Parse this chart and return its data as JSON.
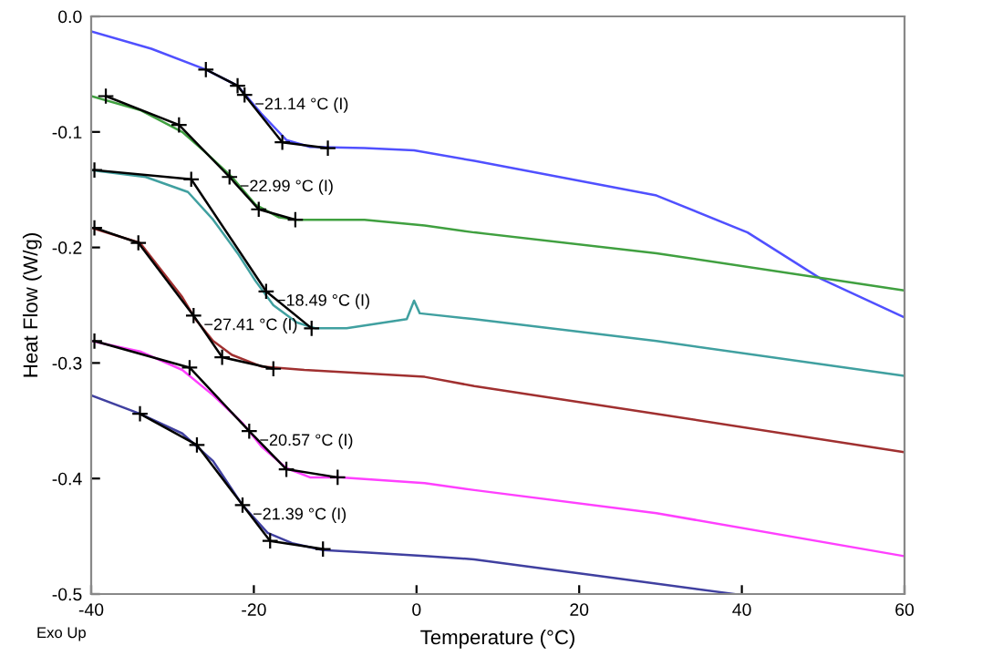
{
  "chart_data": {
    "type": "line",
    "xlabel": "Temperature (°C)",
    "ylabel": "Heat Flow (W/g)",
    "xlim": [
      -40,
      60
    ],
    "xticks": [
      -40,
      -20,
      0,
      20,
      40,
      60
    ],
    "ylim": [
      -0.5,
      0.0
    ],
    "yticks": [
      {
        "value": -0.5,
        "label": "-0.5"
      },
      {
        "value": -0.4,
        "label": "-0.4"
      },
      {
        "value": -0.3,
        "label": "-0.3"
      },
      {
        "value": -0.2,
        "label": "-0.2"
      },
      {
        "value": -0.1,
        "label": "-0.1"
      },
      {
        "value": 0.0,
        "label": "0.0"
      }
    ],
    "grid": false,
    "legend": false,
    "marker": "none",
    "line_style": "solid",
    "series": [
      {
        "color": "#5050ff",
        "x": [
          -40,
          -32.6,
          -25.9,
          -22,
          -19.1,
          -16,
          -13.1,
          -6.4,
          -0.3,
          7.1,
          29.5,
          40.7,
          49.7,
          59.8
        ],
        "values": [
          -0.013,
          -0.028,
          -0.046,
          -0.06,
          -0.084,
          -0.107,
          -0.113,
          -0.114,
          -0.116,
          -0.125,
          -0.155,
          -0.187,
          -0.227,
          -0.26
        ]
      },
      {
        "color": "#40a040",
        "x": [
          -40,
          -34,
          -28.8,
          -25.9,
          -22.7,
          -19.8,
          -16.9,
          -14.7,
          -6.4,
          1,
          7.1,
          29.5,
          59.8
        ],
        "values": [
          -0.069,
          -0.081,
          -0.1,
          -0.118,
          -0.139,
          -0.163,
          -0.174,
          -0.176,
          -0.176,
          -0.181,
          -0.187,
          -0.205,
          -0.237
        ]
      },
      {
        "color": "#40a0a0",
        "x": [
          -40,
          -33.3,
          -28.1,
          -25,
          -22,
          -19.8,
          -17.6,
          -14.7,
          -12.4,
          -8.6,
          -1.2,
          -0.3,
          0.4,
          7.1,
          29.5,
          59.8
        ],
        "values": [
          -0.133,
          -0.139,
          -0.152,
          -0.176,
          -0.205,
          -0.229,
          -0.25,
          -0.265,
          -0.27,
          -0.27,
          -0.262,
          -0.246,
          -0.257,
          -0.262,
          -0.281,
          -0.311
        ]
      },
      {
        "color": "#a03030",
        "x": [
          -40,
          -34,
          -28.8,
          -27.2,
          -25,
          -22.7,
          -19.1,
          -13.8,
          -6.4,
          1,
          7.1,
          29.5,
          59.8
        ],
        "values": [
          -0.183,
          -0.196,
          -0.243,
          -0.262,
          -0.281,
          -0.293,
          -0.303,
          -0.306,
          -0.309,
          -0.312,
          -0.32,
          -0.344,
          -0.377
        ]
      },
      {
        "color": "#ff40ff",
        "x": [
          -40,
          -34,
          -28.8,
          -25,
          -21.4,
          -19.1,
          -16,
          -13.1,
          -9.3,
          1,
          7.1,
          29.5,
          59.8
        ],
        "values": [
          -0.281,
          -0.29,
          -0.306,
          -0.328,
          -0.352,
          -0.372,
          -0.391,
          -0.399,
          -0.399,
          -0.404,
          -0.41,
          -0.43,
          -0.467
        ]
      },
      {
        "color": "#4040a0",
        "x": [
          -40,
          -34,
          -28.8,
          -25,
          -21.4,
          -18.3,
          -15.3,
          -11.5,
          -6.4,
          1,
          7.1,
          22.1,
          39.1
        ],
        "values": [
          -0.328,
          -0.344,
          -0.361,
          -0.385,
          -0.423,
          -0.447,
          -0.456,
          -0.462,
          -0.464,
          -0.467,
          -0.47,
          -0.484,
          -0.5
        ]
      },
      {
        "color": "#000000",
        "marker": "cross",
        "x": [
          -25.9,
          -22,
          -21.14,
          -16.5,
          -10.9
        ],
        "values": [
          -0.046,
          -0.06,
          -0.068,
          -0.109,
          -0.114
        ]
      },
      {
        "color": "#000000",
        "marker": "cross",
        "x": [
          -38.2,
          -29.2,
          -22.99,
          -19.4,
          -14.9
        ],
        "values": [
          -0.069,
          -0.094,
          -0.139,
          -0.167,
          -0.176
        ]
      },
      {
        "color": "#000000",
        "marker": "cross",
        "x": [
          -39.6,
          -27.7,
          -18.49,
          -12.9
        ],
        "values": [
          -0.133,
          -0.141,
          -0.238,
          -0.27
        ]
      },
      {
        "color": "#000000",
        "marker": "cross",
        "x": [
          -39.6,
          -34.2,
          -27.41,
          -23.9,
          -17.6
        ],
        "values": [
          -0.183,
          -0.196,
          -0.259,
          -0.295,
          -0.305
        ]
      },
      {
        "color": "#000000",
        "marker": "cross",
        "x": [
          -39.6,
          -27.9,
          -20.57,
          -16,
          -9.7
        ],
        "values": [
          -0.281,
          -0.304,
          -0.359,
          -0.392,
          -0.399
        ]
      },
      {
        "color": "#000000",
        "marker": "cross",
        "x": [
          -34,
          -27,
          -21.39,
          -18,
          -11.5
        ],
        "values": [
          -0.344,
          -0.371,
          -0.423,
          -0.454,
          -0.461
        ]
      }
    ],
    "annotations": [
      {
        "text": "−21.14 °C (I)",
        "x": -21.14,
        "y": -0.068
      },
      {
        "text": "−22.99 °C (I)",
        "x": -22.99,
        "y": -0.139
      },
      {
        "text": "−18.49 °C (I)",
        "x": -18.49,
        "y": -0.238
      },
      {
        "text": "−27.41 °C (I)",
        "x": -27.41,
        "y": -0.259
      },
      {
        "text": "−20.57 °C (I)",
        "x": -20.57,
        "y": -0.359
      },
      {
        "text": "−21.39 °C (I)",
        "x": -21.39,
        "y": -0.423
      },
      "Exo Up"
    ]
  }
}
